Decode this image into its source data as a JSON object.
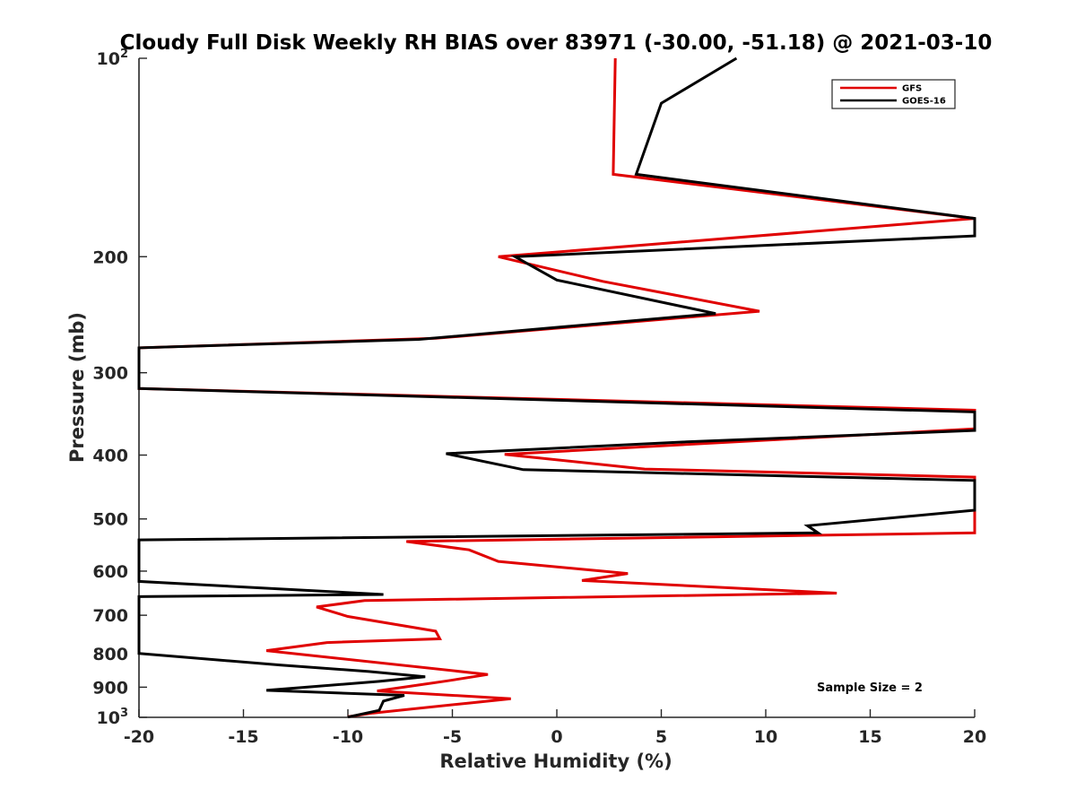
{
  "chart_data": {
    "type": "line",
    "title": "Cloudy Full Disk Weekly RH BIAS over 83971 (-30.00, -51.18) @ 2021-03-10",
    "xlabel": "Relative Humidity (%)",
    "ylabel": "Pressure (mb)",
    "xlim": [
      -20,
      20
    ],
    "ylim": [
      100,
      1000
    ],
    "y_scale": "log",
    "y_reversed": true,
    "x_ticks": [
      "-20",
      "-15",
      "-10",
      "-5",
      "0",
      "5",
      "10",
      "15",
      "20"
    ],
    "y_ticks": [
      {
        "value": 100,
        "base": "10",
        "exp": "2"
      },
      {
        "value": 200,
        "base": "200",
        "exp": ""
      },
      {
        "value": 300,
        "base": "300",
        "exp": ""
      },
      {
        "value": 400,
        "base": "400",
        "exp": ""
      },
      {
        "value": 500,
        "base": "500",
        "exp": ""
      },
      {
        "value": 600,
        "base": "600",
        "exp": ""
      },
      {
        "value": 700,
        "base": "700",
        "exp": ""
      },
      {
        "value": 800,
        "base": "800",
        "exp": ""
      },
      {
        "value": 900,
        "base": "900",
        "exp": ""
      },
      {
        "value": 1000,
        "base": "10",
        "exp": "3"
      }
    ],
    "legend_position": "top-right",
    "annotation": "Sample Size = 2",
    "series": [
      {
        "name": "GFS",
        "color": "#e00000",
        "points": [
          [
            2.8,
            100
          ],
          [
            2.7,
            150
          ],
          [
            20,
            175
          ],
          [
            -2.8,
            200
          ],
          [
            2.2,
            218
          ],
          [
            9.7,
            242
          ],
          [
            -5.8,
            266
          ],
          [
            -20,
            275
          ],
          [
            -20,
            317
          ],
          [
            20,
            342
          ],
          [
            20,
            365
          ],
          [
            -2.5,
            399
          ],
          [
            4.2,
            420
          ],
          [
            20,
            432
          ],
          [
            20,
            525
          ],
          [
            -7.2,
            541
          ],
          [
            -4.2,
            557
          ],
          [
            -2.8,
            580
          ],
          [
            3.4,
            605
          ],
          [
            1.2,
            620
          ],
          [
            13.4,
            648
          ],
          [
            -9.2,
            665
          ],
          [
            -11.5,
            680
          ],
          [
            -10,
            703
          ],
          [
            -5.8,
            740
          ],
          [
            -5.6,
            760
          ],
          [
            -11,
            770
          ],
          [
            -13.9,
            792
          ],
          [
            -3.3,
            861
          ],
          [
            -5.2,
            880
          ],
          [
            -8.6,
            912
          ],
          [
            -2.2,
            937
          ],
          [
            -4,
            950
          ],
          [
            -8.8,
            985
          ],
          [
            -10,
            998
          ]
        ]
      },
      {
        "name": "GOES-16",
        "color": "#000000",
        "points": [
          [
            8.6,
            100
          ],
          [
            5,
            117
          ],
          [
            3.8,
            150
          ],
          [
            20,
            175
          ],
          [
            20,
            186
          ],
          [
            -2,
            200
          ],
          [
            0,
            217
          ],
          [
            7.6,
            244
          ],
          [
            -6.6,
            267
          ],
          [
            -20,
            275
          ],
          [
            -20,
            317
          ],
          [
            20,
            344
          ],
          [
            20,
            367
          ],
          [
            6.2,
            382
          ],
          [
            -5.3,
            398
          ],
          [
            -1.6,
            421
          ],
          [
            20,
            437
          ],
          [
            20,
            485
          ],
          [
            12,
            512
          ],
          [
            12.5,
            525
          ],
          [
            -20,
            538
          ],
          [
            -20,
            622
          ],
          [
            -8.3,
            651
          ],
          [
            -20,
            656
          ],
          [
            -20,
            800
          ],
          [
            -13.2,
            833
          ],
          [
            -9,
            852
          ],
          [
            -6.3,
            868
          ],
          [
            -8.5,
            882
          ],
          [
            -13.9,
            910
          ],
          [
            -7.3,
            926
          ],
          [
            -8.3,
            945
          ],
          [
            -8.5,
            976
          ],
          [
            -10,
            999
          ]
        ]
      }
    ]
  }
}
